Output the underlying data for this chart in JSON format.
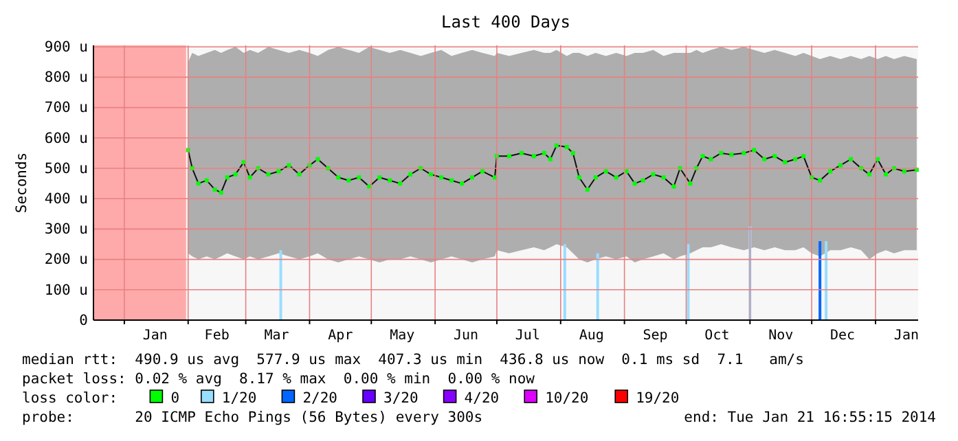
{
  "chart_data": {
    "type": "line",
    "title": "Last 400 Days",
    "ylabel": "Seconds",
    "xlim": [
      "2012-12-17",
      "2014-01-21T16:55"
    ],
    "ylim": [
      0,
      905
    ],
    "xticks": [
      {
        "value": "2013-01-01",
        "label": null
      },
      {
        "value": "2013-01-16",
        "label": "Jan"
      },
      {
        "value": "2013-02-01",
        "label": null
      },
      {
        "value": "2013-02-15",
        "label": "Feb"
      },
      {
        "value": "2013-03-01",
        "label": null
      },
      {
        "value": "2013-03-16",
        "label": "Mar"
      },
      {
        "value": "2013-04-01",
        "label": null
      },
      {
        "value": "2013-04-16",
        "label": "Apr"
      },
      {
        "value": "2013-05-01",
        "label": null
      },
      {
        "value": "2013-05-16",
        "label": "May"
      },
      {
        "value": "2013-06-01",
        "label": null
      },
      {
        "value": "2013-06-16",
        "label": "Jun"
      },
      {
        "value": "2013-07-01",
        "label": null
      },
      {
        "value": "2013-07-16",
        "label": "Jul"
      },
      {
        "value": "2013-08-01",
        "label": null
      },
      {
        "value": "2013-08-16",
        "label": "Aug"
      },
      {
        "value": "2013-09-01",
        "label": null
      },
      {
        "value": "2013-09-16",
        "label": "Sep"
      },
      {
        "value": "2013-10-01",
        "label": null
      },
      {
        "value": "2013-10-16",
        "label": "Oct"
      },
      {
        "value": "2013-11-01",
        "label": null
      },
      {
        "value": "2013-11-16",
        "label": "Nov"
      },
      {
        "value": "2013-12-01",
        "label": null
      },
      {
        "value": "2013-12-16",
        "label": "Dec"
      },
      {
        "value": "2014-01-01",
        "label": null
      },
      {
        "value": "2014-01-16",
        "label": "Jan"
      }
    ],
    "yticks": [
      0,
      {
        "value": 100,
        "label": "100 u"
      },
      {
        "value": 200,
        "label": "200 u"
      },
      {
        "value": 300,
        "label": "300 u"
      },
      {
        "value": 400,
        "label": "400 u"
      },
      {
        "value": 500,
        "label": "500 u"
      },
      {
        "value": 600,
        "label": "600 u"
      },
      {
        "value": 700,
        "label": "700 u"
      },
      {
        "value": 800,
        "label": "800 u"
      },
      {
        "value": 900,
        "label": "900 u"
      }
    ],
    "grid": true,
    "legend": "bottom",
    "legend_title": "loss color:",
    "bands": [
      {
        "axis": "x",
        "from": "2012-12-17",
        "to": "2013-01-31",
        "color": "#ffaaaa"
      }
    ],
    "series": [
      {
        "name": "0",
        "color": "#00ff00",
        "marker": "square",
        "x": [
          "2013-02-01",
          "2013-02-03",
          "2013-02-06",
          "2013-02-10",
          "2013-02-14",
          "2013-02-17",
          "2013-02-20",
          "2013-02-24",
          "2013-02-28",
          "2013-03-03",
          "2013-03-07",
          "2013-03-12",
          "2013-03-17",
          "2013-03-22",
          "2013-03-27",
          "2013-04-01",
          "2013-04-05",
          "2013-04-10",
          "2013-04-15",
          "2013-04-20",
          "2013-04-25",
          "2013-04-30",
          "2013-05-05",
          "2013-05-10",
          "2013-05-15",
          "2013-05-20",
          "2013-05-25",
          "2013-05-30",
          "2013-06-04",
          "2013-06-09",
          "2013-06-14",
          "2013-06-19",
          "2013-06-24",
          "2013-06-30",
          "2013-07-01",
          "2013-07-07",
          "2013-07-13",
          "2013-07-19",
          "2013-07-24",
          "2013-07-27",
          "2013-07-30",
          "2013-08-04",
          "2013-08-07",
          "2013-08-10",
          "2013-08-14",
          "2013-08-18",
          "2013-08-23",
          "2013-08-28",
          "2013-09-02",
          "2013-09-06",
          "2013-09-10",
          "2013-09-15",
          "2013-09-20",
          "2013-09-25",
          "2013-09-28",
          "2013-10-03",
          "2013-10-06",
          "2013-10-09",
          "2013-10-13",
          "2013-10-18",
          "2013-10-23",
          "2013-10-29",
          "2013-11-03",
          "2013-11-08",
          "2013-11-13",
          "2013-11-18",
          "2013-11-23",
          "2013-11-27",
          "2013-12-01",
          "2013-12-05",
          "2013-12-10",
          "2013-12-15",
          "2013-12-20",
          "2013-12-25",
          "2013-12-29",
          "2014-01-02",
          "2014-01-06",
          "2014-01-10",
          "2014-01-15",
          "2014-01-21"
        ],
        "values": [
          560,
          500,
          450,
          460,
          430,
          420,
          470,
          480,
          520,
          470,
          500,
          480,
          490,
          510,
          480,
          510,
          530,
          500,
          470,
          460,
          470,
          440,
          470,
          460,
          450,
          480,
          500,
          480,
          470,
          460,
          450,
          470,
          490,
          470,
          540,
          540,
          550,
          540,
          550,
          530,
          575,
          570,
          550,
          470,
          430,
          470,
          490,
          470,
          490,
          450,
          460,
          480,
          470,
          440,
          500,
          450,
          500,
          540,
          530,
          550,
          545,
          550,
          560,
          530,
          540,
          520,
          530,
          540,
          470,
          460,
          490,
          510,
          530,
          500,
          480,
          530,
          480,
          500,
          490,
          495
        ],
        "lower": [
          220,
          210,
          200,
          210,
          200,
          210,
          220,
          210,
          200,
          210,
          200,
          210,
          220,
          210,
          200,
          210,
          220,
          200,
          190,
          200,
          210,
          200,
          190,
          200,
          200,
          210,
          200,
          190,
          200,
          210,
          200,
          190,
          200,
          210,
          230,
          220,
          230,
          240,
          230,
          240,
          250,
          240,
          220,
          200,
          190,
          200,
          210,
          200,
          210,
          190,
          200,
          210,
          220,
          200,
          210,
          220,
          230,
          240,
          240,
          250,
          240,
          230,
          240,
          230,
          240,
          230,
          230,
          240,
          220,
          210,
          230,
          230,
          240,
          230,
          200,
          220,
          230,
          220,
          230,
          230
        ],
        "upper": [
          850,
          880,
          870,
          880,
          890,
          880,
          890,
          900,
          880,
          890,
          880,
          900,
          890,
          880,
          890,
          880,
          870,
          890,
          900,
          890,
          880,
          900,
          890,
          880,
          890,
          880,
          870,
          880,
          890,
          870,
          880,
          890,
          880,
          870,
          880,
          870,
          880,
          890,
          880,
          880,
          890,
          870,
          880,
          880,
          870,
          880,
          870,
          880,
          870,
          880,
          880,
          890,
          870,
          880,
          880,
          880,
          890,
          880,
          890,
          900,
          890,
          900,
          890,
          880,
          890,
          880,
          870,
          880,
          870,
          860,
          870,
          860,
          870,
          860,
          870,
          860,
          870,
          860,
          870,
          860
        ]
      },
      {
        "name": "1/20",
        "type": "bar",
        "color": "#99ddff",
        "x": [
          "2013-03-18",
          "2013-08-03",
          "2013-08-19",
          "2013-10-02",
          "2013-11-01",
          "2013-12-08"
        ],
        "values": [
          230,
          250,
          220,
          250,
          310,
          260
        ]
      },
      {
        "name": "2/20",
        "type": "bar",
        "color": "#0066ff",
        "x": [
          "2013-12-05"
        ],
        "values": [
          260
        ]
      },
      {
        "name": "3/20",
        "type": "bar",
        "color": "#6600ff"
      },
      {
        "name": "4/20",
        "type": "bar",
        "color": "#8800ff"
      },
      {
        "name": "10/20",
        "type": "bar",
        "color": "#dd00ff"
      },
      {
        "name": "19/20",
        "type": "bar",
        "color": "#ff0000"
      }
    ],
    "annotations": [
      "median rtt:  490.9 us avg  577.9 us max  407.3 us min  436.8 us now  0.1 ms sd  7.1   am/s",
      "packet loss: 0.02 % avg  8.17 % max  0.00 % min  0.00 % now",
      "probe:       20 ICMP Echo Pings (56 Bytes) every 300s",
      "end: Tue Jan 21 16:55:15 2014"
    ]
  }
}
